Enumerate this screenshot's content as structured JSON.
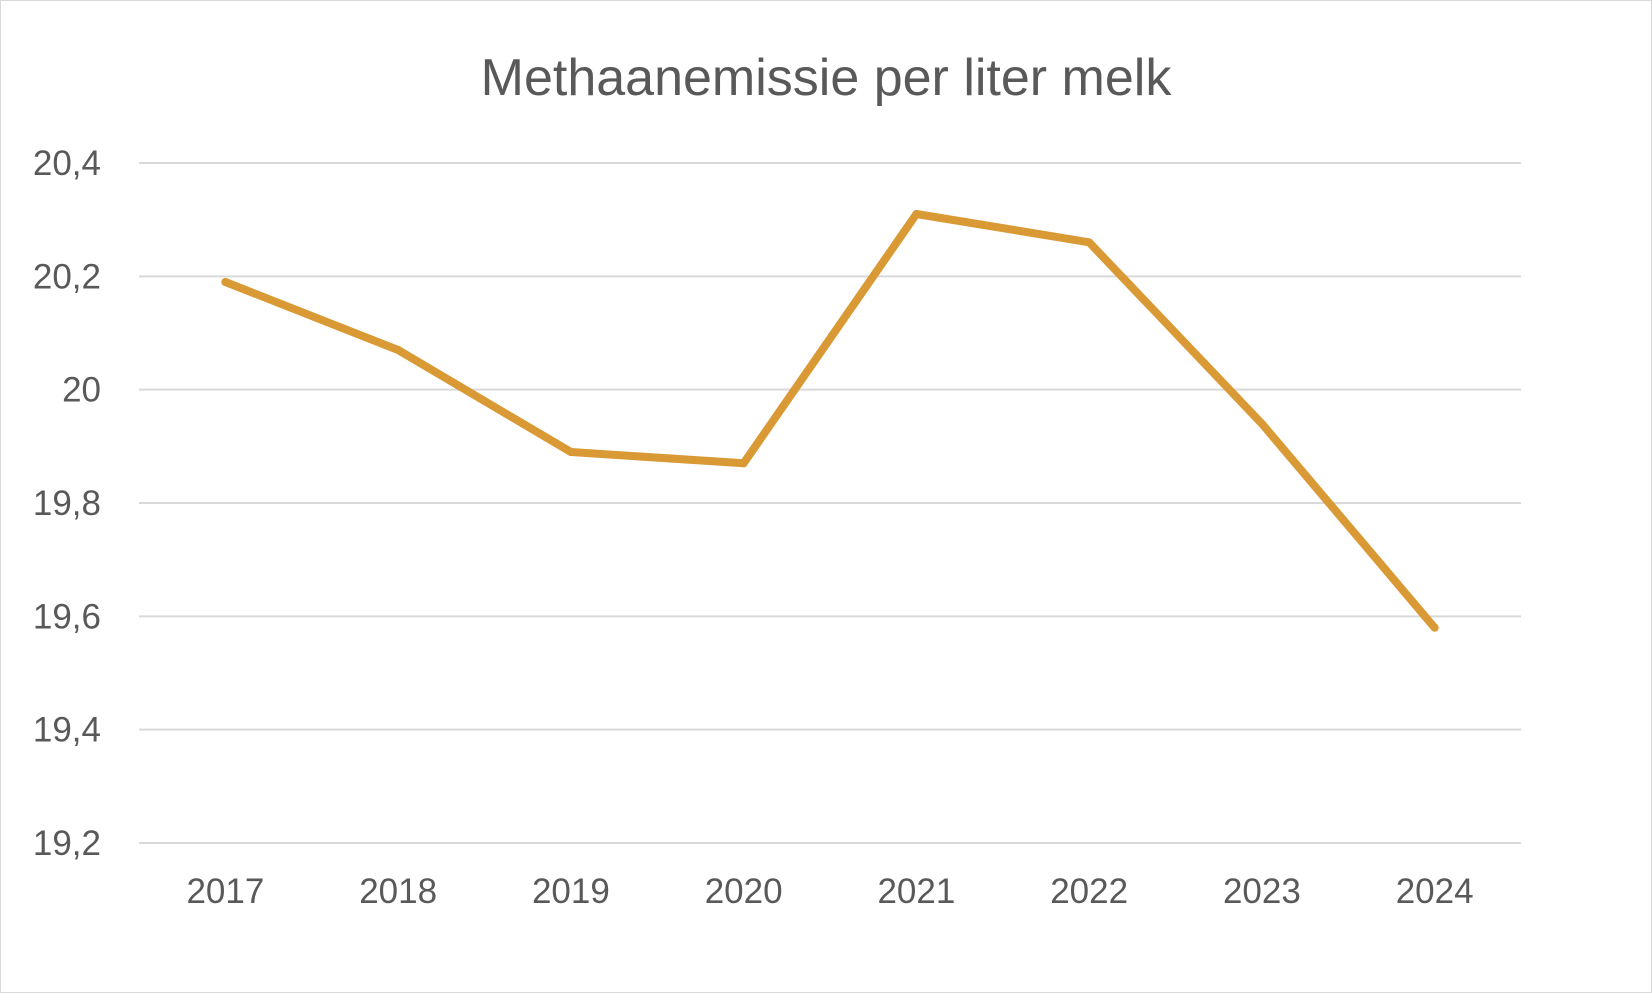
{
  "chart_data": {
    "type": "line",
    "title": "Methaanemissie per liter melk",
    "xlabel": "",
    "ylabel": "",
    "categories": [
      "2017",
      "2018",
      "2019",
      "2020",
      "2021",
      "2022",
      "2023",
      "2024"
    ],
    "series": [
      {
        "values": [
          20.19,
          20.07,
          19.89,
          19.87,
          20.31,
          20.26,
          19.94,
          19.58
        ],
        "color": "#D99A35"
      }
    ],
    "ylim": [
      19.2,
      20.4
    ],
    "yticks": [
      19.2,
      19.4,
      19.6,
      19.8,
      20,
      20.2,
      20.4
    ],
    "ytick_labels": [
      "19,2",
      "19,4",
      "19,6",
      "19,8",
      "20",
      "20,2",
      "20,4"
    ],
    "grid": true,
    "legend": "none"
  }
}
